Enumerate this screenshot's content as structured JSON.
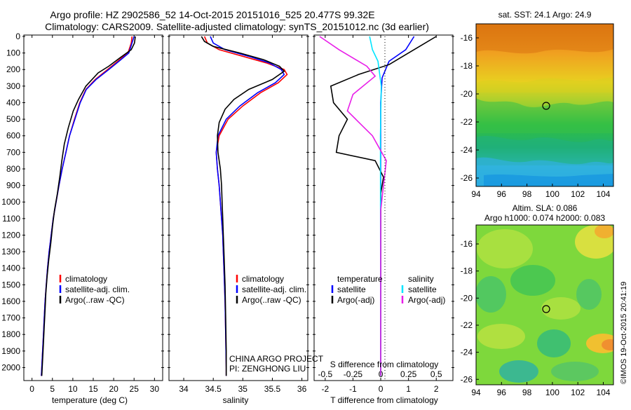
{
  "title": {
    "line1": "Argo profile: HZ 2902586_52 14-Oct-2015 20151016_525 20.477S 99.32E",
    "line2": "Climatology: CARS2009. Satellite-adjusted climatology: synTS_20151012.nc (3d earlier)"
  },
  "colors": {
    "climatology": "#ff0000",
    "satellite": "#0000ff",
    "argo": "#000000",
    "salinity_sat": "#00e5ff",
    "salinity_argo": "#e81ee8"
  },
  "credit": {
    "project": "CHINA ARGO PROJECT",
    "pi": "PI: ZENGHONG LIU",
    "imos": "©IMOS 19-Oct-2015 20:41:19"
  },
  "chart_data": [
    {
      "type": "line",
      "name": "temperature",
      "xlabel": "temperature (deg C)",
      "xlim": [
        -2,
        32
      ],
      "xticks": [
        "0",
        "5",
        "10",
        "15",
        "20",
        "25",
        "30"
      ],
      "ylim": [
        2070,
        0
      ],
      "yticks": [
        "0",
        "100",
        "200",
        "300",
        "400",
        "500",
        "600",
        "700",
        "800",
        "900",
        "1000",
        "1100",
        "1200",
        "1300",
        "1400",
        "1500",
        "1600",
        "1700",
        "1800",
        "1900",
        "2000"
      ],
      "legend": [
        "climatology",
        "satellite-adj. clim.",
        "Argo(..raw -QC)"
      ],
      "series": [
        {
          "name": "climatology",
          "color": "#ff0000",
          "points": [
            [
              24.5,
              0
            ],
            [
              24.3,
              40
            ],
            [
              23.5,
              100
            ],
            [
              21,
              150
            ],
            [
              18.5,
              200
            ],
            [
              15.5,
              260
            ],
            [
              13.2,
              320
            ],
            [
              11.7,
              400
            ],
            [
              10.4,
              500
            ],
            [
              9.2,
              600
            ],
            [
              8.3,
              700
            ],
            [
              7.4,
              800
            ],
            [
              6.6,
              900
            ],
            [
              5.9,
              1000
            ],
            [
              5.2,
              1100
            ],
            [
              4.7,
              1200
            ],
            [
              4.2,
              1300
            ],
            [
              3.8,
              1400
            ],
            [
              3.5,
              1500
            ],
            [
              3.2,
              1600
            ],
            [
              3,
              1700
            ],
            [
              2.8,
              1800
            ],
            [
              2.6,
              1900
            ],
            [
              2.4,
              2000
            ],
            [
              2.3,
              2050
            ]
          ]
        },
        {
          "name": "satellite-adj. clim.",
          "color": "#0000ff",
          "points": [
            [
              25,
              0
            ],
            [
              24.5,
              40
            ],
            [
              23.7,
              100
            ],
            [
              21.3,
              150
            ],
            [
              18.8,
              200
            ],
            [
              15.7,
              260
            ],
            [
              13.3,
              320
            ],
            [
              11.8,
              400
            ],
            [
              10.5,
              500
            ],
            [
              9.2,
              600
            ],
            [
              8.3,
              700
            ],
            [
              7.4,
              800
            ],
            [
              6.6,
              900
            ],
            [
              5.9,
              1000
            ],
            [
              5.2,
              1100
            ],
            [
              4.7,
              1200
            ],
            [
              4.2,
              1300
            ],
            [
              3.8,
              1400
            ],
            [
              3.5,
              1500
            ],
            [
              3.2,
              1600
            ],
            [
              3,
              1700
            ],
            [
              2.8,
              1800
            ],
            [
              2.6,
              1900
            ],
            [
              2.4,
              2000
            ],
            [
              2.3,
              2050
            ]
          ]
        },
        {
          "name": "Argo(..raw -QC)",
          "color": "#000000",
          "points": [
            [
              25.3,
              0
            ],
            [
              25.1,
              40
            ],
            [
              24.3,
              80
            ],
            [
              21.5,
              130
            ],
            [
              18.8,
              180
            ],
            [
              16.2,
              220
            ],
            [
              13.2,
              300
            ],
            [
              11.4,
              380
            ],
            [
              10.1,
              450
            ],
            [
              8.9,
              550
            ],
            [
              7.9,
              650
            ],
            [
              7.3,
              750
            ],
            [
              6.8,
              850
            ],
            [
              6.2,
              950
            ],
            [
              5.5,
              1050
            ],
            [
              5,
              1150
            ],
            [
              4.6,
              1250
            ],
            [
              4.1,
              1350
            ],
            [
              3.7,
              1450
            ],
            [
              3.4,
              1550
            ],
            [
              3.2,
              1650
            ],
            [
              3,
              1750
            ],
            [
              2.8,
              1850
            ],
            [
              2.6,
              1950
            ],
            [
              2.4,
              2050
            ]
          ]
        }
      ]
    },
    {
      "type": "line",
      "name": "salinity",
      "xlabel": "salinity",
      "xlim": [
        33.75,
        36.1
      ],
      "xticks": [
        "34",
        "34.5",
        "35",
        "35.5",
        "36"
      ],
      "ylim": [
        2070,
        0
      ],
      "legend": [
        "climatology",
        "satellite-adj. clim.",
        "Argo(..raw -QC)"
      ],
      "series": [
        {
          "name": "climatology",
          "color": "#ff0000",
          "points": [
            [
              34.35,
              0
            ],
            [
              34.4,
              40
            ],
            [
              34.6,
              80
            ],
            [
              35,
              120
            ],
            [
              35.4,
              160
            ],
            [
              35.7,
              200
            ],
            [
              35.75,
              230
            ],
            [
              35.6,
              280
            ],
            [
              35.3,
              340
            ],
            [
              35,
              420
            ],
            [
              34.75,
              500
            ],
            [
              34.6,
              600
            ],
            [
              34.55,
              700
            ],
            [
              34.57,
              800
            ],
            [
              34.6,
              900
            ],
            [
              34.62,
              1000
            ],
            [
              34.64,
              1100
            ],
            [
              34.66,
              1200
            ],
            [
              34.67,
              1300
            ],
            [
              34.68,
              1400
            ],
            [
              34.69,
              1500
            ],
            [
              34.7,
              1600
            ],
            [
              34.71,
              1800
            ],
            [
              34.72,
              2000
            ],
            [
              34.72,
              2050
            ]
          ]
        },
        {
          "name": "satellite-adj. clim.",
          "color": "#0000ff",
          "points": [
            [
              34.45,
              0
            ],
            [
              34.5,
              40
            ],
            [
              34.7,
              80
            ],
            [
              35.1,
              120
            ],
            [
              35.45,
              160
            ],
            [
              35.65,
              200
            ],
            [
              35.7,
              230
            ],
            [
              35.55,
              280
            ],
            [
              35.25,
              340
            ],
            [
              34.95,
              420
            ],
            [
              34.72,
              500
            ],
            [
              34.58,
              600
            ],
            [
              34.55,
              700
            ],
            [
              34.57,
              800
            ],
            [
              34.6,
              900
            ],
            [
              34.62,
              1000
            ],
            [
              34.64,
              1100
            ],
            [
              34.66,
              1200
            ],
            [
              34.67,
              1300
            ],
            [
              34.68,
              1400
            ],
            [
              34.69,
              1500
            ],
            [
              34.7,
              1600
            ],
            [
              34.71,
              1800
            ],
            [
              34.72,
              2000
            ],
            [
              34.72,
              2050
            ]
          ]
        },
        {
          "name": "Argo(..raw -QC)",
          "color": "#000000",
          "points": [
            [
              34.3,
              0
            ],
            [
              34.35,
              30
            ],
            [
              34.5,
              60
            ],
            [
              34.95,
              100
            ],
            [
              35.35,
              140
            ],
            [
              35.62,
              180
            ],
            [
              35.7,
              210
            ],
            [
              35.5,
              260
            ],
            [
              35.1,
              320
            ],
            [
              34.85,
              380
            ],
            [
              34.7,
              440
            ],
            [
              34.6,
              520
            ],
            [
              34.57,
              600
            ],
            [
              34.58,
              700
            ],
            [
              34.62,
              800
            ],
            [
              34.64,
              900
            ],
            [
              34.65,
              1000
            ],
            [
              34.66,
              1100
            ],
            [
              34.67,
              1200
            ],
            [
              34.68,
              1300
            ],
            [
              34.69,
              1400
            ],
            [
              34.7,
              1500
            ],
            [
              34.71,
              1700
            ],
            [
              34.72,
              1900
            ],
            [
              34.72,
              2050
            ]
          ]
        }
      ]
    },
    {
      "type": "line",
      "name": "difference from climatology",
      "xlabel": "T difference from climatology",
      "xlabel_top": "S difference from climatology",
      "xlim_T": [
        -2.4,
        2.6
      ],
      "xticks_T": [
        "-2",
        "-1",
        "0",
        "1",
        "2"
      ],
      "xticks_S": [
        "-0.5",
        "-0.25",
        "0",
        "0.25",
        "0.5"
      ],
      "ylim": [
        2070,
        0
      ],
      "legend_temperature": {
        "title": "temperature",
        "items": [
          "satellite",
          "Argo(-adj)"
        ]
      },
      "legend_salinity": {
        "title": "salinity",
        "items": [
          "satellite",
          "Argo(-adj)"
        ]
      },
      "series": [
        {
          "name": "T satellite",
          "color": "#0000ff",
          "points": [
            [
              1.2,
              0
            ],
            [
              0.9,
              80
            ],
            [
              0.3,
              150
            ],
            [
              0.05,
              250
            ],
            [
              0,
              400
            ],
            [
              0,
              2050
            ]
          ]
        },
        {
          "name": "T Argo(-adj)",
          "color": "#000000",
          "points": [
            [
              2,
              0
            ],
            [
              1.5,
              50
            ],
            [
              0.8,
              120
            ],
            [
              0.3,
              170
            ],
            [
              -0.8,
              230
            ],
            [
              -1.8,
              300
            ],
            [
              -1.7,
              400
            ],
            [
              -1.2,
              500
            ],
            [
              -1.5,
              600
            ],
            [
              -1.6,
              700
            ],
            [
              -0.2,
              750
            ],
            [
              0.1,
              850
            ],
            [
              0,
              950
            ],
            [
              0,
              2050
            ]
          ]
        },
        {
          "name": "S satellite",
          "color": "#00e5ff",
          "points": [
            [
              -0.4,
              0
            ],
            [
              -0.3,
              80
            ],
            [
              -0.1,
              150
            ],
            [
              0.02,
              300
            ],
            [
              -0.01,
              600
            ],
            [
              0,
              2050
            ]
          ]
        },
        {
          "name": "S Argo(-adj)",
          "color": "#e81ee8",
          "points": [
            [
              -2.2,
              0
            ],
            [
              -1.5,
              80
            ],
            [
              -0.5,
              180
            ],
            [
              -0.2,
              240
            ],
            [
              -1,
              350
            ],
            [
              -1.2,
              450
            ],
            [
              -0.3,
              600
            ],
            [
              0.2,
              750
            ],
            [
              0.1,
              900
            ],
            [
              0,
              1050
            ],
            [
              0,
              2050
            ]
          ]
        }
      ]
    },
    {
      "type": "heatmap",
      "name": "sst_map",
      "title": "sat. SST: 24.1  Argo: 24.9",
      "xticks": [
        "94",
        "96",
        "98",
        "100",
        "102",
        "104"
      ],
      "yticks": [
        "-16",
        "-18",
        "-20",
        "-22",
        "-24",
        "-26"
      ],
      "marker": [
        99.32,
        -20.477
      ]
    },
    {
      "type": "heatmap",
      "name": "sla_map",
      "title_line1": "Altim. SLA: 0.086",
      "title_line2": "Argo h1000: 0.074 h2000: 0.083",
      "xticks": [
        "94",
        "96",
        "98",
        "100",
        "102",
        "104"
      ],
      "yticks": [
        "-16",
        "-18",
        "-20",
        "-22",
        "-24",
        "-26"
      ],
      "marker": [
        99.32,
        -20.477
      ]
    }
  ]
}
